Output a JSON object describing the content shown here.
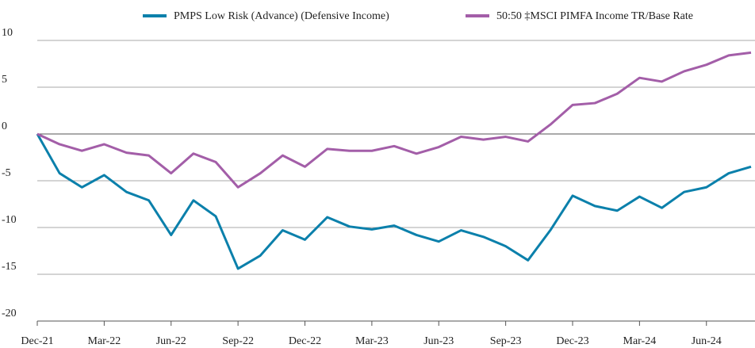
{
  "chart_data": {
    "type": "line",
    "categories": [
      "Dec-21",
      null,
      null,
      "Mar-22",
      null,
      null,
      "Jun-22",
      null,
      null,
      "Sep-22",
      null,
      null,
      "Dec-22",
      null,
      null,
      "Mar-23",
      null,
      null,
      "Jun-23",
      null,
      null,
      "Sep-23",
      null,
      null,
      "Dec-23",
      null,
      null,
      "Mar-24",
      null,
      null,
      "Jun-24",
      null,
      null
    ],
    "series": [
      {
        "name": "PMPS Low Risk (Advance) (Defensive Income)",
        "color": "#0b80ab",
        "values": [
          0,
          -4.2,
          -5.7,
          -4.4,
          -6.2,
          -7.1,
          -10.8,
          -7.1,
          -8.8,
          -14.4,
          -13.0,
          -10.3,
          -11.3,
          -8.9,
          -9.9,
          -10.2,
          -9.8,
          -10.8,
          -11.5,
          -10.3,
          -11.0,
          -12.0,
          -13.5,
          -10.3,
          -6.6,
          -7.7,
          -8.2,
          -6.7,
          -7.9,
          -6.2,
          -5.7,
          -4.2,
          -3.5
        ]
      },
      {
        "name": "50:50 ‡MSCI PIMFA Income TR/Base Rate",
        "color": "#a35ea8",
        "values": [
          0,
          -1.1,
          -1.8,
          -1.1,
          -2.0,
          -2.3,
          -4.2,
          -2.1,
          -3.0,
          -5.7,
          -4.2,
          -2.3,
          -3.5,
          -1.6,
          -1.8,
          -1.8,
          -1.3,
          -2.1,
          -1.4,
          -0.3,
          -0.6,
          -0.3,
          -0.8,
          1.0,
          3.1,
          3.3,
          4.3,
          6.0,
          5.6,
          6.7,
          7.4,
          8.4,
          8.7
        ]
      }
    ],
    "ylim": [
      -20,
      10
    ],
    "yticks": [
      -20,
      -15,
      -10,
      -5,
      0,
      5,
      10
    ],
    "grid": true,
    "legend": "top-right"
  }
}
